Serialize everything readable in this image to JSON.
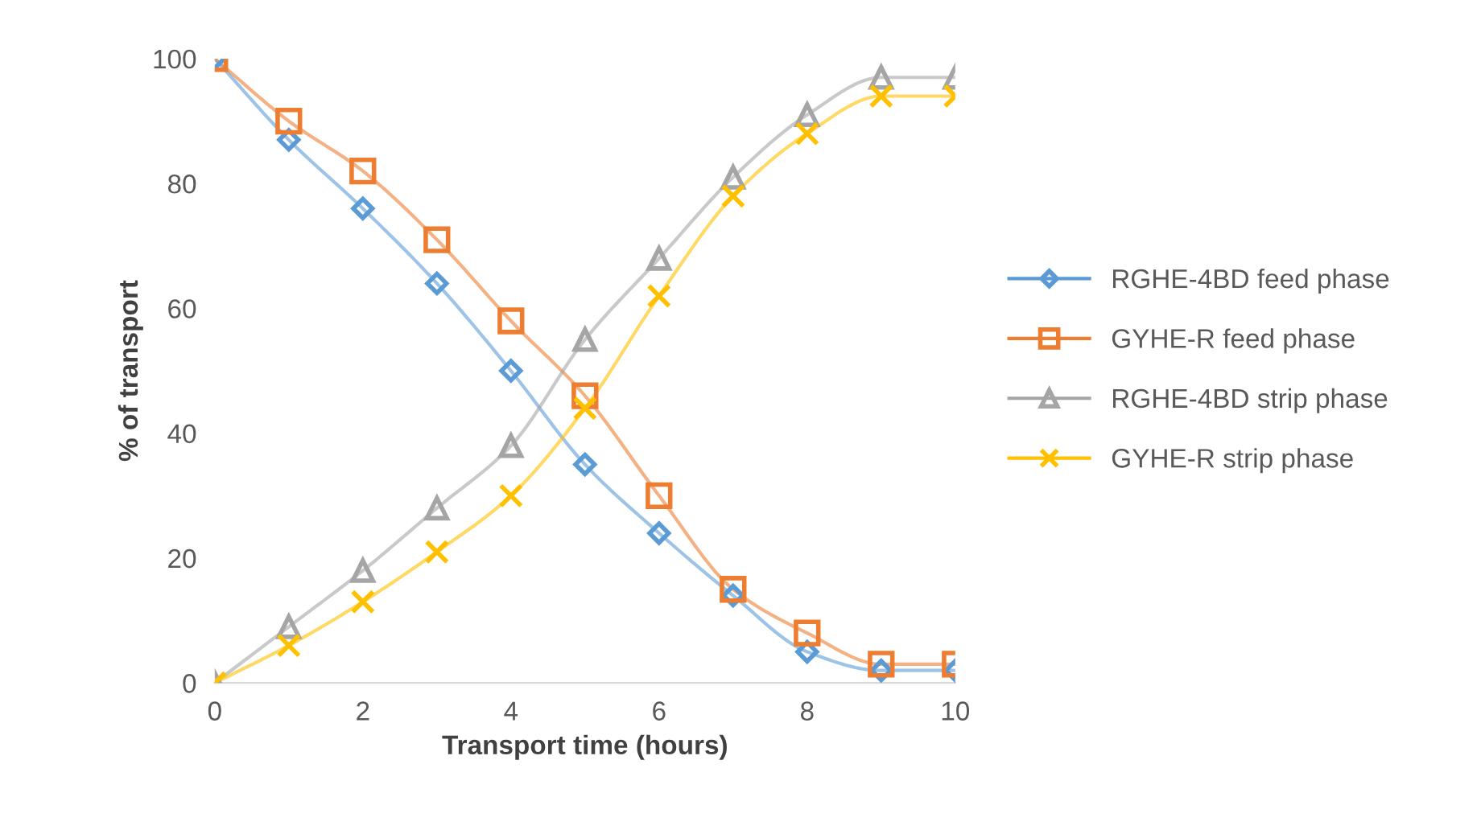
{
  "chart_data": {
    "type": "line",
    "xlabel": "Transport time (hours)",
    "ylabel": "% of transport",
    "x": [
      0,
      1,
      2,
      3,
      4,
      5,
      6,
      7,
      8,
      9,
      10
    ],
    "xlim": [
      0,
      10
    ],
    "xticks": [
      0,
      2,
      4,
      6,
      8,
      10
    ],
    "ylim": [
      0,
      100
    ],
    "yticks": [
      0,
      20,
      40,
      60,
      80,
      100
    ],
    "grid": false,
    "legend": "right",
    "series": [
      {
        "name": "RGHE-4BD feed phase",
        "color": "#5b9bd5",
        "marker": "diamond",
        "values": [
          100,
          87,
          76,
          64,
          50,
          35,
          24,
          14,
          5,
          2,
          2
        ]
      },
      {
        "name": "GYHE-R feed phase",
        "color": "#ed7d31",
        "marker": "square",
        "values": [
          100,
          90,
          82,
          71,
          58,
          46,
          30,
          15,
          8,
          3,
          3
        ]
      },
      {
        "name": "RGHE-4BD strip phase",
        "color": "#a5a5a5",
        "marker": "triangle",
        "values": [
          0,
          9,
          18,
          28,
          38,
          55,
          68,
          81,
          91,
          97,
          97
        ]
      },
      {
        "name": "GYHE-R strip phase",
        "color": "#ffc000",
        "marker": "cross",
        "values": [
          0,
          6,
          13,
          21,
          30,
          44,
          62,
          78,
          88,
          94,
          94
        ]
      }
    ]
  }
}
